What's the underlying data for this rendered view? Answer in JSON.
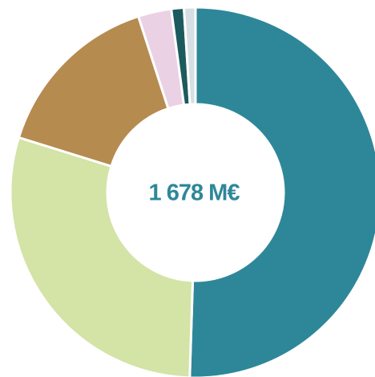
{
  "chart_data": {
    "type": "donut",
    "center_label": "1 678 M€",
    "values": [
      50.5,
      29.3,
      15.2,
      2.9,
      1.1,
      1.0
    ],
    "colors": [
      "#2e8799",
      "#d4e3a6",
      "#b68b4f",
      "#ebd1e4",
      "#1c5a5e",
      "#d6dfe3"
    ]
  }
}
